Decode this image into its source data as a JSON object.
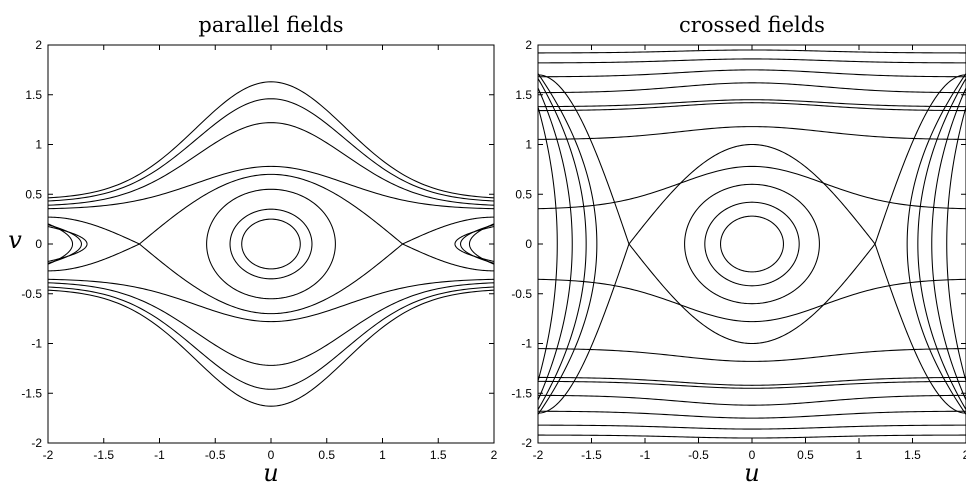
{
  "chart_data": [
    {
      "type": "line",
      "title": "parallel fields",
      "xlabel": "u",
      "ylabel": "v",
      "xlim": [
        -2,
        2
      ],
      "ylim": [
        -2,
        2
      ],
      "xticks": [
        "-2",
        "-1.5",
        "-1",
        "-0.5",
        "0",
        "0.5",
        "1",
        "1.5",
        "2"
      ],
      "yticks": [
        "2",
        "1.5",
        "1",
        "0.5",
        "0",
        "-0.5",
        "-1",
        "-1.5",
        "-2"
      ],
      "grid": false,
      "curves": [
        {
          "family": "separatrix",
          "saddles_at_u": [
            -1.18,
            1.18
          ],
          "center_v_max": 0.7,
          "edge_v": 0.27
        },
        {
          "family": "closed",
          "center": [
            0,
            0
          ],
          "radii": [
            0.25,
            0.35,
            0.55
          ]
        },
        {
          "family": "open",
          "v_at_u0": [
            0.78,
            1.22,
            1.46,
            1.63
          ],
          "v_at_edge": [
            0.35,
            0.38,
            0.42,
            0.45
          ],
          "mirrored": true
        },
        {
          "family": "side_loops",
          "at_u": [
            -2,
            2
          ],
          "tip_u": [
            1.65,
            1.7,
            1.78
          ],
          "half_height": [
            0.22,
            0.25,
            0.28
          ]
        }
      ]
    },
    {
      "type": "line",
      "title": "crossed fields",
      "xlabel": "u",
      "ylabel": "",
      "xlim": [
        -2,
        2
      ],
      "ylim": [
        -2,
        2
      ],
      "xticks": [
        "-2",
        "-1.5",
        "-1",
        "-0.5",
        "0",
        "0.5",
        "1",
        "1.5",
        "2"
      ],
      "yticks": [
        "2",
        "1.5",
        "1",
        "0.5",
        "0",
        "-0.5",
        "-1",
        "-1.5",
        "-2"
      ],
      "grid": false,
      "curves": [
        {
          "family": "separatrix",
          "saddles_at_u": [
            -1.15,
            1.15
          ],
          "center_v_max": 1.0,
          "edge_v": 1.7
        },
        {
          "family": "closed",
          "center": [
            0,
            0
          ],
          "radii": [
            0.28,
            0.42,
            0.6
          ]
        },
        {
          "family": "open",
          "v_at_u0": [
            0.78,
            1.18,
            1.42,
            1.45,
            1.62,
            1.75,
            1.86,
            1.95
          ],
          "v_at_edge": [
            0.35,
            1.05,
            1.34,
            1.38,
            1.52,
            1.68,
            1.82,
            1.92
          ],
          "mirrored": true
        },
        {
          "family": "side_loops",
          "at_u": [
            -2,
            2
          ],
          "tip_u": [
            1.45,
            1.55,
            1.68,
            1.82
          ],
          "half_height": [
            2.0,
            2.0,
            2.0,
            2.0
          ]
        }
      ]
    }
  ]
}
